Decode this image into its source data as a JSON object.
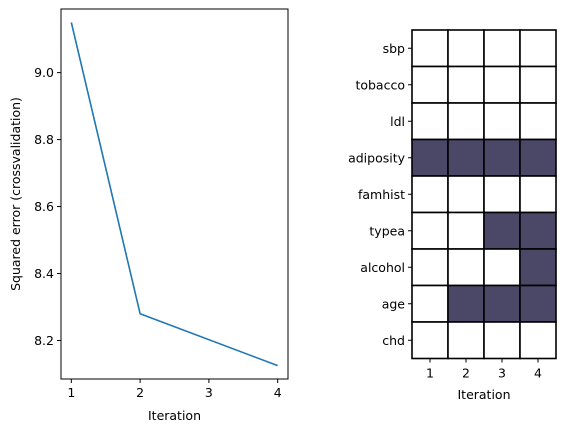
{
  "chart_data": [
    {
      "type": "line",
      "xlabel": "Iteration",
      "ylabel": "Squared error (crossvalidation)",
      "xlim": [
        0.85,
        4.15
      ],
      "ylim": [
        8.085,
        9.19
      ],
      "xticks": [
        1,
        2,
        3,
        4
      ],
      "yticks": [
        8.2,
        8.4,
        8.6,
        8.8,
        9.0
      ],
      "ytick_labels": [
        "8.2",
        "8.4",
        "8.6",
        "8.8",
        "9.0"
      ],
      "grid": false,
      "series": [
        {
          "x": [
            1,
            2,
            4
          ],
          "y": [
            9.15,
            8.28,
            8.125
          ],
          "color": "#1f77b4"
        }
      ]
    },
    {
      "type": "heatmap",
      "xlabel": "Iteration",
      "columns": [
        "1",
        "2",
        "3",
        "4"
      ],
      "rows": [
        "sbp",
        "tobacco",
        "ldl",
        "adiposity",
        "famhist",
        "typea",
        "alcohol",
        "age",
        "chd"
      ],
      "values": [
        [
          0,
          0,
          0,
          0
        ],
        [
          0,
          0,
          0,
          0
        ],
        [
          0,
          0,
          0,
          0
        ],
        [
          1,
          1,
          1,
          1
        ],
        [
          0,
          0,
          0,
          0
        ],
        [
          0,
          0,
          1,
          1
        ],
        [
          0,
          0,
          0,
          1
        ],
        [
          0,
          1,
          1,
          1
        ],
        [
          0,
          0,
          0,
          0
        ]
      ],
      "colors": {
        "on": "#4a4866",
        "off": "#ffffff"
      }
    }
  ]
}
